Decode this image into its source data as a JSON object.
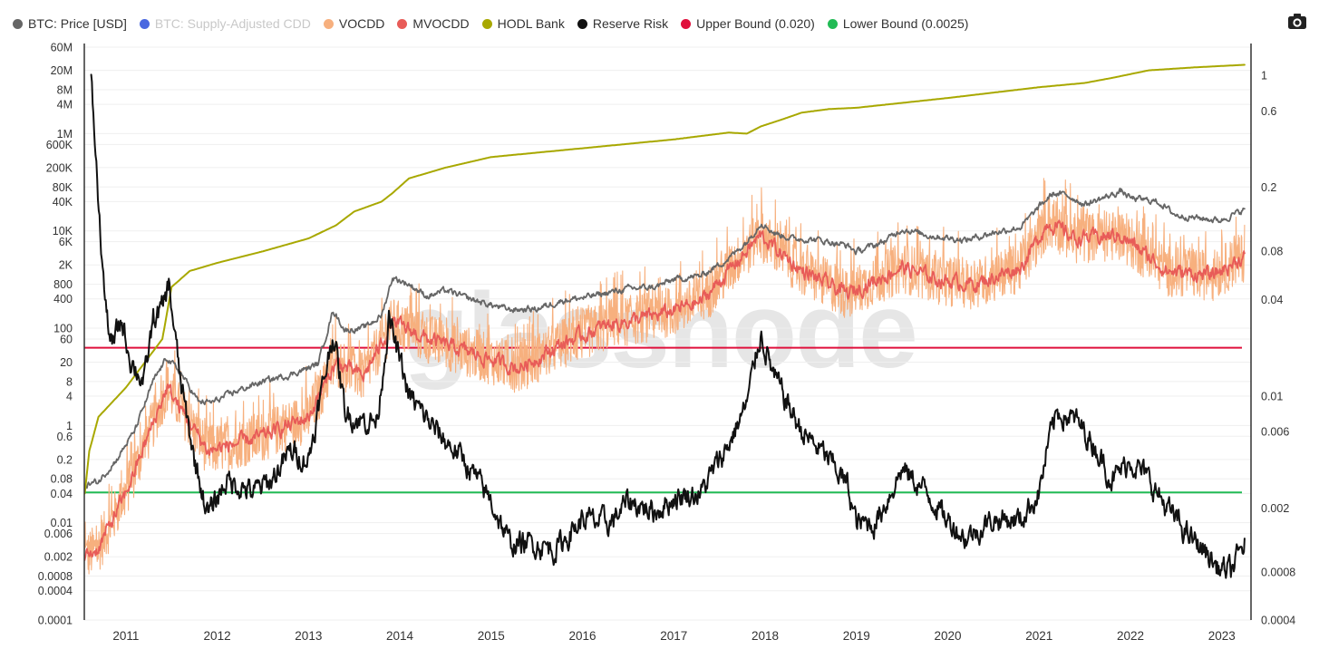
{
  "legend": {
    "items": [
      {
        "label": "BTC: Price [USD]",
        "color": "#666666",
        "disabled": false
      },
      {
        "label": "BTC: Supply-Adjusted CDD",
        "color": "#4a68e0",
        "disabled": true
      },
      {
        "label": "VOCDD",
        "color": "#f7b07e",
        "disabled": false
      },
      {
        "label": "MVOCDD",
        "color": "#e85c58",
        "disabled": false
      },
      {
        "label": "HODL Bank",
        "color": "#a8a800",
        "disabled": false
      },
      {
        "label": "Reserve Risk",
        "color": "#111111",
        "disabled": false
      },
      {
        "label": "Upper Bound (0.020)",
        "color": "#e0103c",
        "disabled": false
      },
      {
        "label": "Lower Bound (0.0025)",
        "color": "#22bb55",
        "disabled": false
      }
    ]
  },
  "toolbar": {
    "camera_icon": "camera-icon"
  },
  "watermark": "glassnode",
  "chart_data": {
    "type": "line",
    "title": "",
    "x_range": [
      "2010-07-18",
      "2023-03-31"
    ],
    "x_ticks": [
      "2011",
      "2012",
      "2013",
      "2014",
      "2015",
      "2016",
      "2017",
      "2018",
      "2019",
      "2020",
      "2021",
      "2022",
      "2023"
    ],
    "y_left": {
      "scale": "log",
      "ticks": [
        "0.0001",
        "0.0004",
        "0.0008",
        "0.002",
        "0.006",
        "0.01",
        "0.04",
        "0.08",
        "0.2",
        "0.6",
        "1",
        "4",
        "8",
        "20",
        "60",
        "100",
        "400",
        "800",
        "2K",
        "6K",
        "10K",
        "40K",
        "80K",
        "200K",
        "600K",
        "1M",
        "4M",
        "8M",
        "20M",
        "60M"
      ],
      "tick_values": [
        0.0001,
        0.0004,
        0.0008,
        0.002,
        0.006,
        0.01,
        0.04,
        0.08,
        0.2,
        0.6,
        1,
        4,
        8,
        20,
        60,
        100,
        400,
        800,
        2000,
        6000,
        10000,
        40000,
        80000,
        200000,
        600000,
        1000000,
        4000000,
        8000000,
        20000000,
        60000000
      ],
      "range": [
        0.0001,
        60000000
      ]
    },
    "y_right": {
      "scale": "log",
      "ticks": [
        "0.0004",
        "0.0008",
        "0.002",
        "0.006",
        "0.01",
        "0.04",
        "0.08",
        "0.2",
        "0.6",
        "1"
      ],
      "tick_values": [
        0.0004,
        0.0008,
        0.002,
        0.006,
        0.01,
        0.04,
        0.08,
        0.2,
        0.6,
        1
      ],
      "range": [
        0.0004,
        1.5
      ]
    },
    "series": [
      {
        "name": "BTC: Price [USD]",
        "axis": "left",
        "color": "#666666",
        "noise": 0.05,
        "x": [
          2010.55,
          2010.7,
          2010.9,
          2011.1,
          2011.3,
          2011.45,
          2011.6,
          2011.8,
          2011.95,
          2012.2,
          2012.5,
          2012.8,
          2013.1,
          2013.27,
          2013.4,
          2013.6,
          2013.8,
          2013.92,
          2014.1,
          2014.3,
          2014.5,
          2014.8,
          2015.0,
          2015.2,
          2015.5,
          2015.8,
          2016.0,
          2016.5,
          2016.8,
          2017.0,
          2017.3,
          2017.6,
          2017.8,
          2017.96,
          2018.1,
          2018.3,
          2018.6,
          2018.9,
          2019.0,
          2019.3,
          2019.5,
          2019.8,
          2020.0,
          2020.2,
          2020.5,
          2020.8,
          2021.0,
          2021.15,
          2021.3,
          2021.5,
          2021.8,
          2021.9,
          2022.0,
          2022.3,
          2022.5,
          2022.9,
          2023.0,
          2023.25
        ],
        "y": [
          0.06,
          0.07,
          0.2,
          0.8,
          8,
          25,
          12,
          3,
          3,
          5,
          8,
          11,
          18,
          230,
          90,
          100,
          180,
          1100,
          800,
          450,
          600,
          380,
          300,
          240,
          250,
          380,
          420,
          650,
          700,
          1000,
          1200,
          2700,
          6000,
          15000,
          9000,
          7000,
          6500,
          5000,
          3700,
          6000,
          11000,
          8000,
          7200,
          6500,
          9200,
          12000,
          31000,
          58000,
          55000,
          35000,
          55000,
          66000,
          47000,
          40000,
          21000,
          17000,
          16800,
          27500
        ]
      },
      {
        "name": "VOCDD",
        "axis": "left",
        "color": "#f7b07e",
        "noise": 0.95,
        "x": [
          2010.55,
          2010.7,
          2011.0,
          2011.45,
          2011.9,
          2012.5,
          2013.0,
          2013.3,
          2013.6,
          2013.92,
          2014.3,
          2014.8,
          2015.3,
          2015.8,
          2016.3,
          2016.8,
          2017.3,
          2017.95,
          2018.4,
          2018.9,
          2019.5,
          2019.9,
          2020.3,
          2020.8,
          2021.1,
          2021.4,
          2021.9,
          2022.4,
          2022.9,
          2023.25
        ],
        "y": [
          0.002,
          0.003,
          0.04,
          6,
          0.3,
          0.6,
          1.5,
          20,
          10,
          130,
          60,
          30,
          15,
          50,
          120,
          180,
          350,
          8000,
          1500,
          500,
          1800,
          1000,
          800,
          1800,
          15000,
          7000,
          8000,
          1500,
          1200,
          3000
        ]
      },
      {
        "name": "MVOCDD",
        "axis": "left",
        "color": "#e85c58",
        "noise": 0.12,
        "x": [
          2010.55,
          2010.7,
          2011.0,
          2011.45,
          2011.9,
          2012.5,
          2013.0,
          2013.3,
          2013.6,
          2013.92,
          2014.3,
          2014.8,
          2015.3,
          2015.8,
          2016.3,
          2016.8,
          2017.3,
          2017.95,
          2018.4,
          2018.9,
          2019.5,
          2019.9,
          2020.3,
          2020.8,
          2021.1,
          2021.4,
          2021.9,
          2022.4,
          2022.9,
          2023.25
        ],
        "y": [
          0.002,
          0.003,
          0.04,
          6,
          0.3,
          0.6,
          1.5,
          20,
          10,
          130,
          60,
          30,
          15,
          50,
          120,
          180,
          350,
          8000,
          1500,
          500,
          1800,
          1000,
          800,
          1800,
          15000,
          7000,
          8000,
          1500,
          1200,
          3000
        ]
      },
      {
        "name": "HODL Bank",
        "axis": "left",
        "color": "#a8a800",
        "noise": 0,
        "x": [
          2010.55,
          2010.6,
          2010.7,
          2011.0,
          2011.4,
          2011.5,
          2011.7,
          2012.0,
          2012.5,
          2013.0,
          2013.3,
          2013.5,
          2013.8,
          2013.92,
          2014.1,
          2014.5,
          2015.0,
          2016.0,
          2017.0,
          2017.6,
          2017.8,
          2017.95,
          2018.2,
          2018.4,
          2018.7,
          2019.0,
          2020.0,
          2021.0,
          2021.5,
          2021.8,
          2022.2,
          2022.7,
          2023.25
        ],
        "y": [
          0.04,
          0.3,
          1.5,
          6,
          60,
          700,
          1500,
          2200,
          3800,
          7000,
          13000,
          25000,
          40000,
          60000,
          120000,
          200000,
          330000,
          500000,
          760000,
          1050000,
          1000000,
          1400000,
          2000000,
          2700000,
          3200000,
          3400000,
          5400000,
          9000000,
          11000000,
          14000000,
          20000000,
          23000000,
          26000000
        ]
      },
      {
        "name": "Reserve Risk",
        "axis": "right",
        "color": "#111111",
        "noise": 0.06,
        "x": [
          2010.62,
          2010.66,
          2010.72,
          2010.78,
          2010.85,
          2010.95,
          2011.05,
          2011.2,
          2011.3,
          2011.4,
          2011.47,
          2011.6,
          2011.75,
          2011.9,
          2012.1,
          2012.4,
          2012.6,
          2012.8,
          2013.0,
          2013.27,
          2013.4,
          2013.55,
          2013.75,
          2013.88,
          2014.1,
          2014.4,
          2014.7,
          2015.0,
          2015.2,
          2015.5,
          2015.7,
          2016.0,
          2016.3,
          2016.5,
          2016.8,
          2017.0,
          2017.3,
          2017.6,
          2017.8,
          2017.95,
          2018.1,
          2018.4,
          2018.7,
          2018.9,
          2019.0,
          2019.2,
          2019.5,
          2019.8,
          2019.95,
          2020.2,
          2020.5,
          2020.8,
          2021.0,
          2021.1,
          2021.2,
          2021.4,
          2021.6,
          2021.8,
          2022.0,
          2022.2,
          2022.4,
          2022.6,
          2022.8,
          2022.95,
          2023.1,
          2023.25
        ],
        "y": [
          0.9,
          0.4,
          0.1,
          0.035,
          0.02,
          0.03,
          0.017,
          0.012,
          0.03,
          0.035,
          0.05,
          0.012,
          0.004,
          0.0018,
          0.003,
          0.0025,
          0.003,
          0.0045,
          0.004,
          0.025,
          0.008,
          0.007,
          0.007,
          0.03,
          0.01,
          0.006,
          0.004,
          0.0022,
          0.0012,
          0.0012,
          0.0011,
          0.0017,
          0.0016,
          0.0022,
          0.0019,
          0.0023,
          0.0025,
          0.005,
          0.009,
          0.025,
          0.013,
          0.006,
          0.004,
          0.0028,
          0.0016,
          0.0016,
          0.0035,
          0.0024,
          0.0018,
          0.0013,
          0.0017,
          0.0017,
          0.0025,
          0.005,
          0.008,
          0.007,
          0.005,
          0.003,
          0.004,
          0.003,
          0.002,
          0.0014,
          0.0011,
          0.00085,
          0.0008,
          0.0012
        ]
      }
    ],
    "reference_lines": [
      {
        "name": "Upper Bound (0.020)",
        "axis": "right",
        "value": 0.02,
        "color": "#e0103c"
      },
      {
        "name": "Lower Bound (0.0025)",
        "axis": "right",
        "value": 0.0025,
        "color": "#22bb55"
      }
    ]
  }
}
